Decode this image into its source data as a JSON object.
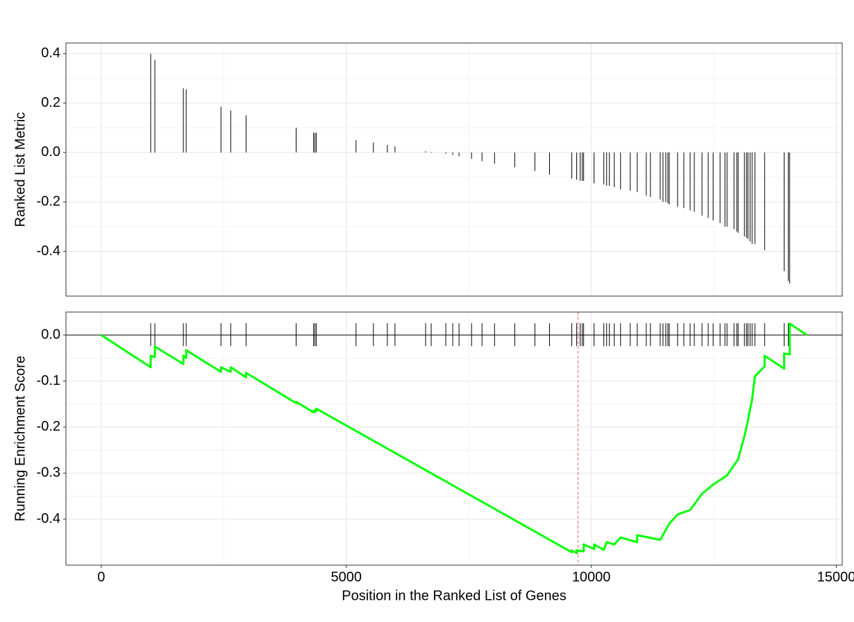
{
  "chart_data": [
    {
      "type": "bar",
      "y_label": "Ranked List Metric",
      "color": "#000000",
      "grid": true,
      "xlim": [
        -720,
        15120
      ],
      "xticks": [
        0,
        5000,
        10000,
        15000
      ],
      "ylim": [
        -0.581,
        0.443
      ],
      "yticks": [
        0.4,
        0.2,
        {
          "value": 0,
          "label": "0.0"
        },
        -0.2,
        -0.4
      ],
      "x": [
        1009,
        1094,
        1676,
        1733,
        2443,
        2642,
        2955,
        3977,
        4332,
        4361,
        4389,
        5199,
        5554,
        5838,
        5994,
        6619,
        6733,
        7031,
        7173,
        7301,
        7557,
        7770,
        8026,
        8438,
        8849,
        9148,
        9602,
        9702,
        9773,
        9815,
        9844,
        10057,
        10256,
        10313,
        10369,
        10469,
        10597,
        10795,
        10938,
        11122,
        11207,
        11406,
        11463,
        11520,
        11563,
        11591,
        11761,
        11889,
        12017,
        12102,
        12259,
        12386,
        12486,
        12628,
        12727,
        12770,
        12912,
        12969,
        12997,
        13125,
        13168,
        13196,
        13239,
        13281,
        13338,
        13537,
        13935,
        14020,
        14048
      ],
      "values": [
        0.4,
        0.375,
        0.26,
        0.255,
        0.185,
        0.17,
        0.15,
        0.1,
        0.08,
        0.08,
        0.08,
        0.05,
        0.04,
        0.03,
        0.025,
        0.005,
        0.002,
        -0.005,
        -0.01,
        -0.015,
        -0.025,
        -0.035,
        -0.045,
        -0.06,
        -0.075,
        -0.09,
        -0.105,
        -0.11,
        -0.115,
        -0.115,
        -0.115,
        -0.125,
        -0.13,
        -0.135,
        -0.135,
        -0.14,
        -0.15,
        -0.155,
        -0.16,
        -0.175,
        -0.18,
        -0.19,
        -0.2,
        -0.2,
        -0.205,
        -0.21,
        -0.22,
        -0.225,
        -0.235,
        -0.24,
        -0.255,
        -0.265,
        -0.275,
        -0.285,
        -0.3,
        -0.3,
        -0.31,
        -0.32,
        -0.325,
        -0.34,
        -0.345,
        -0.35,
        -0.36,
        -0.37,
        -0.37,
        -0.395,
        -0.48,
        -0.52,
        -0.53
      ]
    },
    {
      "type": "line",
      "y_label": "Running Enrichment Score",
      "x_label": "Position in the Ranked List of Genes",
      "color": "#00ff00",
      "grid": true,
      "hit_color": "#000000",
      "vline": {
        "x": 9730,
        "color": "#e06666"
      },
      "xlim": [
        -720,
        15120
      ],
      "xticks": [
        0,
        5000,
        10000,
        15000
      ],
      "ylim": [
        -0.5,
        0.05
      ],
      "yticks": [
        {
          "value": 0,
          "label": "0.0"
        },
        -0.1,
        -0.2,
        -0.3,
        -0.4
      ],
      "x": [
        0,
        1009,
        1009,
        1094,
        1094,
        1676,
        1676,
        1733,
        1733,
        2443,
        2443,
        2642,
        2642,
        2955,
        2955,
        3977,
        3977,
        4332,
        4332,
        4361,
        4361,
        4389,
        4389,
        9602,
        9602,
        9702,
        9702,
        9844,
        9844,
        10057,
        10057,
        10256,
        10313,
        10469,
        10597,
        10938,
        10938,
        11406,
        11591,
        11761,
        12017,
        12259,
        12486,
        12770,
        12997,
        13125,
        13168,
        13281,
        13338,
        13537,
        13537,
        13935,
        13935,
        14048,
        14048,
        14400
      ],
      "values": [
        0,
        -0.07,
        -0.045,
        -0.048,
        -0.025,
        -0.063,
        -0.045,
        -0.05,
        -0.033,
        -0.08,
        -0.07,
        -0.08,
        -0.07,
        -0.092,
        -0.082,
        -0.148,
        -0.145,
        -0.168,
        -0.165,
        -0.167,
        -0.163,
        -0.165,
        -0.16,
        -0.472,
        -0.468,
        -0.474,
        -0.468,
        -0.47,
        -0.455,
        -0.465,
        -0.455,
        -0.467,
        -0.45,
        -0.455,
        -0.44,
        -0.45,
        -0.435,
        -0.445,
        -0.41,
        -0.39,
        -0.38,
        -0.345,
        -0.325,
        -0.305,
        -0.27,
        -0.22,
        -0.2,
        -0.14,
        -0.09,
        -0.068,
        -0.045,
        -0.073,
        -0.04,
        -0.042,
        0.025,
        0
      ]
    }
  ]
}
